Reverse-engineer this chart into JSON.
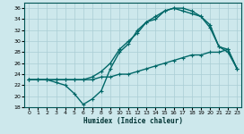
{
  "xlabel": "Humidex (Indice chaleur)",
  "xlim": [
    -0.5,
    23.5
  ],
  "ylim": [
    18,
    37
  ],
  "yticks": [
    18,
    20,
    22,
    24,
    26,
    28,
    30,
    32,
    34,
    36
  ],
  "xticks": [
    0,
    1,
    2,
    3,
    4,
    5,
    6,
    7,
    8,
    9,
    10,
    11,
    12,
    13,
    14,
    15,
    16,
    17,
    18,
    19,
    20,
    21,
    22,
    23
  ],
  "bg_color": "#cde8ec",
  "grid_color": "#aacdd4",
  "line_color": "#006868",
  "line1_x": [
    0,
    1,
    2,
    3,
    4,
    5,
    6,
    7,
    8,
    9,
    10,
    11,
    12,
    13,
    14,
    15,
    16,
    17,
    18,
    19,
    20,
    21,
    22,
    23
  ],
  "line1_y": [
    23.0,
    23.0,
    23.0,
    22.5,
    22.0,
    20.5,
    18.5,
    19.5,
    21.0,
    25.0,
    28.0,
    29.5,
    32.0,
    33.5,
    34.0,
    35.5,
    36.0,
    36.0,
    35.5,
    34.5,
    33.0,
    29.0,
    28.0,
    25.0
  ],
  "line2_x": [
    0,
    1,
    2,
    3,
    4,
    5,
    6,
    7,
    8,
    9,
    10,
    11,
    12,
    13,
    14,
    15,
    16,
    17,
    18,
    19,
    20,
    21,
    22,
    23
  ],
  "line2_y": [
    23.0,
    23.0,
    23.0,
    23.0,
    23.0,
    23.0,
    23.0,
    23.5,
    24.5,
    26.0,
    28.5,
    30.0,
    31.5,
    33.5,
    34.5,
    35.5,
    36.0,
    35.5,
    35.0,
    34.5,
    32.5,
    29.0,
    28.5,
    25.0
  ],
  "line3_x": [
    0,
    1,
    2,
    3,
    4,
    5,
    6,
    7,
    8,
    9,
    10,
    11,
    12,
    13,
    14,
    15,
    16,
    17,
    18,
    19,
    20,
    21,
    22,
    23
  ],
  "line3_y": [
    23.0,
    23.0,
    23.0,
    23.0,
    23.0,
    23.0,
    23.0,
    23.0,
    23.5,
    23.5,
    24.0,
    24.0,
    24.5,
    25.0,
    25.5,
    26.0,
    26.5,
    27.0,
    27.5,
    27.5,
    28.0,
    28.0,
    28.5,
    25.0
  ],
  "markersize": 3,
  "linewidth": 1.0
}
